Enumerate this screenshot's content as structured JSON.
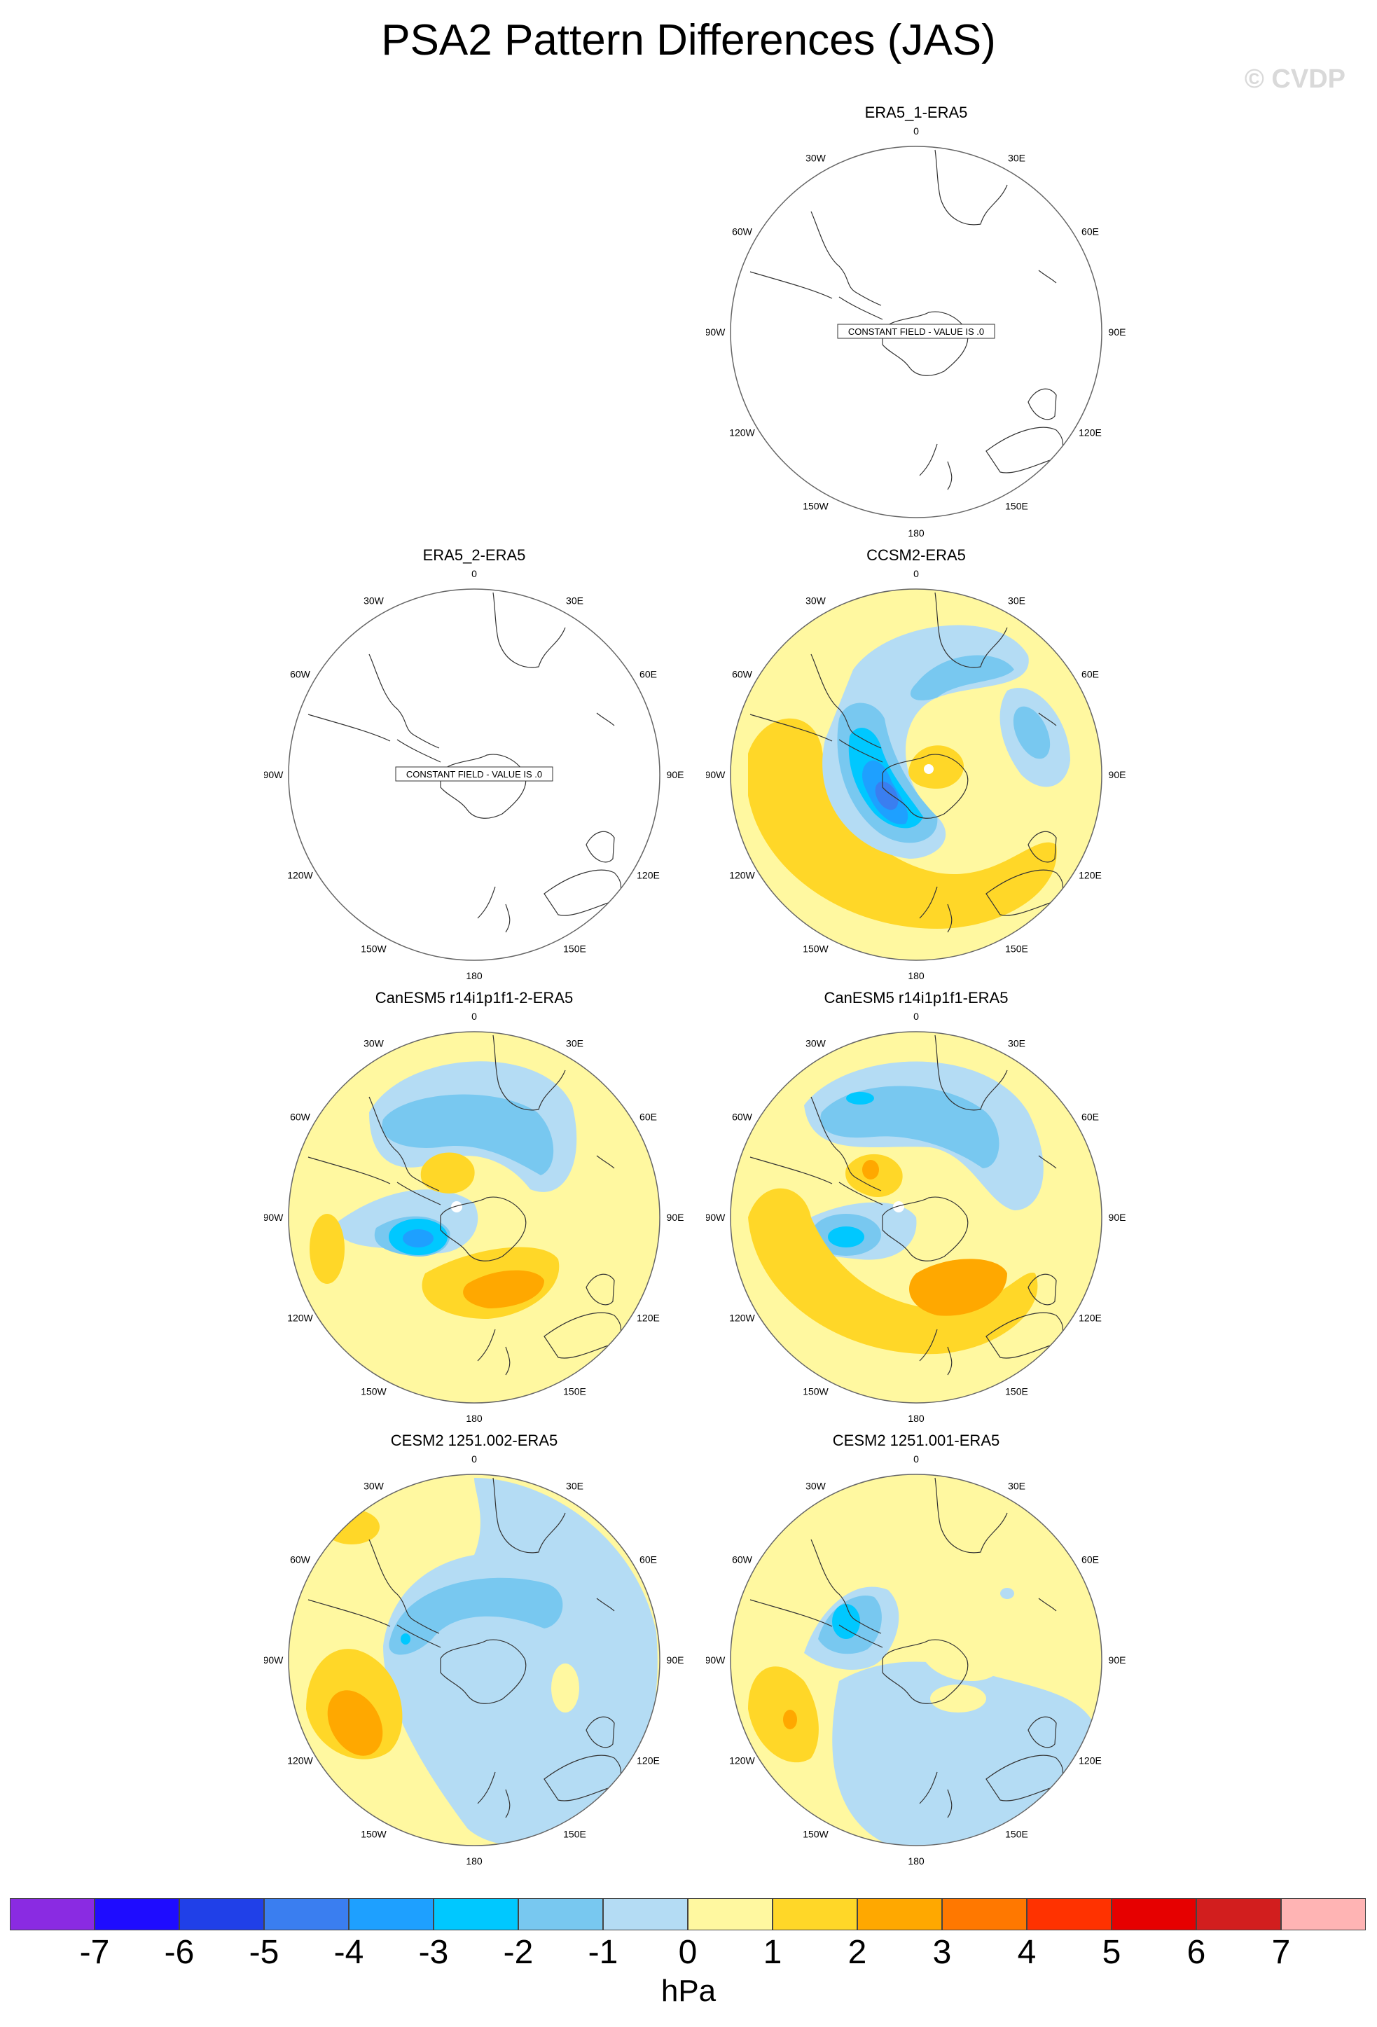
{
  "title": "PSA2 Pattern Differences (JAS)",
  "watermark": "© CVDP",
  "longitude_labels": {
    "n": "0",
    "ne30": "30E",
    "ne60": "60E",
    "e": "90E",
    "se120": "120E",
    "se150": "150E",
    "s": "180",
    "sw150": "150W",
    "sw120": "120W",
    "w": "90W",
    "nw60": "60W",
    "nw30": "30W"
  },
  "panels": [
    {
      "id": "era5_1",
      "title": "ERA5_1-ERA5",
      "note": "CONSTANT FIELD - VALUE IS .0",
      "field": "constant"
    },
    {
      "id": "era5_2",
      "title": "ERA5_2-ERA5",
      "note": "CONSTANT FIELD - VALUE IS .0",
      "field": "constant"
    },
    {
      "id": "ccsm2",
      "title": "CCSM2-ERA5",
      "field": "ccsm2"
    },
    {
      "id": "canesm5_2",
      "title": "CanESM5 r14i1p1f1-2-ERA5",
      "field": "canesm5_2"
    },
    {
      "id": "canesm5",
      "title": "CanESM5 r14i1p1f1-ERA5",
      "field": "canesm5"
    },
    {
      "id": "cesm2_002",
      "title": "CESM2 1251.002-ERA5",
      "field": "cesm2_002"
    },
    {
      "id": "cesm2_001",
      "title": "CESM2 1251.001-ERA5",
      "field": "cesm2_001"
    }
  ],
  "colorbar": {
    "unit": "hPa",
    "labels": [
      "-7",
      "-6",
      "-5",
      "-4",
      "-3",
      "-2",
      "-1",
      "0",
      "1",
      "2",
      "3",
      "4",
      "5",
      "6",
      "7"
    ],
    "colors": [
      "#8a2be2",
      "#1e0cff",
      "#2040e8",
      "#3a7ef0",
      "#1ea0ff",
      "#00c8ff",
      "#78c8f0",
      "#b4dcf4",
      "#fff8a0",
      "#ffd728",
      "#ffa800",
      "#ff7800",
      "#ff3200",
      "#e60000",
      "#d21e1e",
      "#ffb4b4"
    ]
  }
}
